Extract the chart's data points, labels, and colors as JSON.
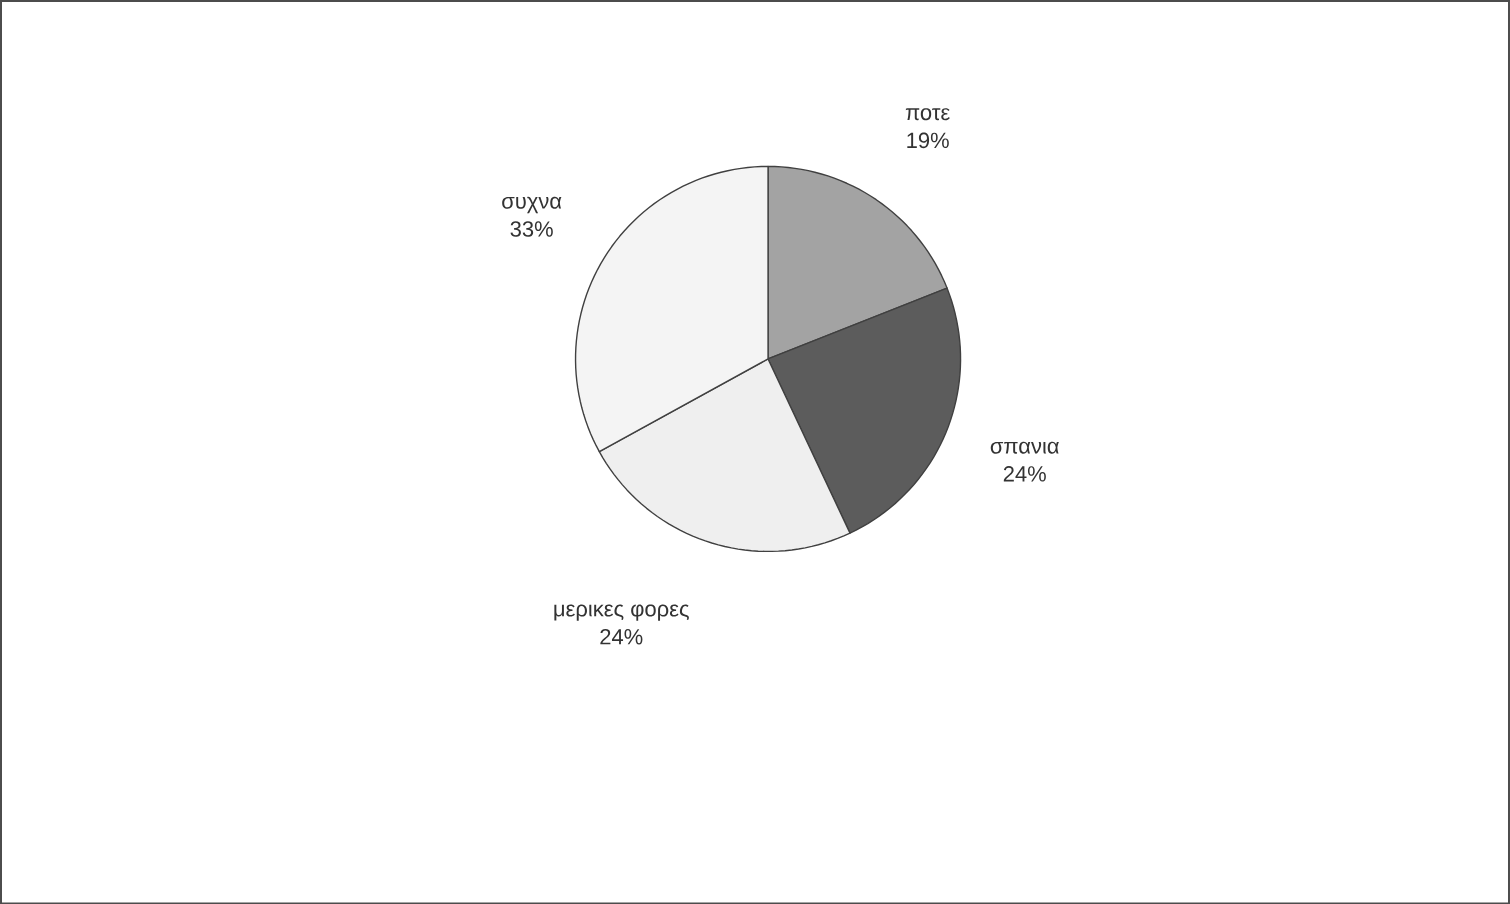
{
  "chart_data": {
    "type": "pie",
    "categories": [
      "ποτε",
      "σπανια",
      "μερικες φορες",
      "συχνα"
    ],
    "values": [
      19,
      24,
      24,
      33
    ],
    "colors": [
      "#a3a3a3",
      "#5c5c5c",
      "#efefef",
      "#f4f4f4"
    ],
    "value_labels": [
      "19%",
      "24%",
      "24%",
      "33%"
    ]
  }
}
